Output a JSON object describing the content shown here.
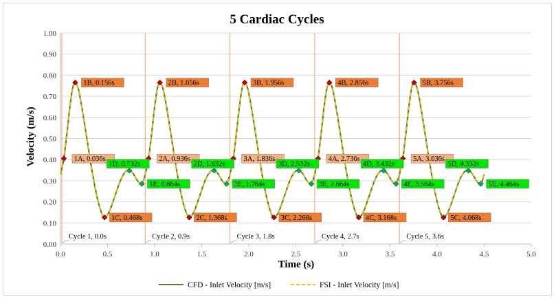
{
  "chart_data": {
    "type": "line",
    "title": "5 Cardiac Cycles",
    "xlabel": "Time (s)",
    "ylabel": "Velocity (m/s)",
    "xlim": [
      0,
      5.0
    ],
    "ylim": [
      0,
      1.0
    ],
    "x_ticks": [
      "0.0",
      "0.5",
      "1.0",
      "1.5",
      "2.0",
      "2.5",
      "3.0",
      "3.5",
      "4.0",
      "4.5",
      "5.0"
    ],
    "y_ticks": [
      "0.00",
      "0.10",
      "0.20",
      "0.30",
      "0.40",
      "0.50",
      "0.60",
      "0.70",
      "0.80",
      "0.90",
      "1.00"
    ],
    "grid": true,
    "legend_position": "bottom",
    "colors": {
      "cfd": "#548235",
      "fsi": "#ffc000",
      "cycle_line": "#f4b183",
      "label_orange_fill": "#f4b183",
      "label_orange_fill_alt": "#ed7d31",
      "label_green_fill": "#00e600",
      "marker_red": "#c00000",
      "marker_green": "#00b050",
      "grid": "#d9d9d9"
    },
    "series": [
      {
        "name": "CFD - Inlet Velocity [m/s]",
        "style": "solid"
      },
      {
        "name": "FSI - Inlet Velocity [m/s]",
        "style": "dashed"
      }
    ],
    "cycle_period": 0.9,
    "cycle_template": {
      "t": [
        0,
        0.02,
        0.036,
        0.07,
        0.1,
        0.13,
        0.156,
        0.19,
        0.23,
        0.28,
        0.33,
        0.38,
        0.43,
        0.468,
        0.52,
        0.58,
        0.64,
        0.69,
        0.732,
        0.77,
        0.81,
        0.84,
        0.864,
        0.88,
        0.9
      ],
      "v": [
        0.33,
        0.37,
        0.405,
        0.53,
        0.65,
        0.74,
        0.765,
        0.735,
        0.64,
        0.5,
        0.36,
        0.24,
        0.155,
        0.126,
        0.155,
        0.23,
        0.305,
        0.342,
        0.348,
        0.335,
        0.305,
        0.288,
        0.285,
        0.3,
        0.33
      ]
    },
    "annotations": [
      {
        "text": "1A, 0.036s",
        "x": 0.036,
        "y": 0.405,
        "kind": "A"
      },
      {
        "text": "1B, 0.156s",
        "x": 0.156,
        "y": 0.765,
        "kind": "B"
      },
      {
        "text": "1C, 0.468s",
        "x": 0.468,
        "y": 0.126,
        "kind": "C"
      },
      {
        "text": "1D, 0.732s",
        "x": 0.732,
        "y": 0.348,
        "kind": "D"
      },
      {
        "text": "1E, 0.864s",
        "x": 0.864,
        "y": 0.285,
        "kind": "E"
      },
      {
        "text": "2A, 0.936s",
        "x": 0.936,
        "y": 0.405,
        "kind": "A"
      },
      {
        "text": "2B, 1.056s",
        "x": 1.056,
        "y": 0.765,
        "kind": "B"
      },
      {
        "text": "2C, 1.368s",
        "x": 1.368,
        "y": 0.126,
        "kind": "C"
      },
      {
        "text": "2D, 1.632s",
        "x": 1.632,
        "y": 0.348,
        "kind": "D"
      },
      {
        "text": "2E, 1.764s",
        "x": 1.764,
        "y": 0.285,
        "kind": "E"
      },
      {
        "text": "3A, 1.836s",
        "x": 1.836,
        "y": 0.405,
        "kind": "A"
      },
      {
        "text": "3B, 1.956s",
        "x": 1.956,
        "y": 0.765,
        "kind": "B"
      },
      {
        "text": "3C, 2.268s",
        "x": 2.268,
        "y": 0.126,
        "kind": "C"
      },
      {
        "text": "3D, 2.532s",
        "x": 2.532,
        "y": 0.348,
        "kind": "D"
      },
      {
        "text": "3E, 2.664s",
        "x": 2.664,
        "y": 0.285,
        "kind": "E"
      },
      {
        "text": "4A, 2.736s",
        "x": 2.736,
        "y": 0.405,
        "kind": "A"
      },
      {
        "text": "4B, 2.856s",
        "x": 2.856,
        "y": 0.765,
        "kind": "B"
      },
      {
        "text": "4C, 3.168s",
        "x": 3.168,
        "y": 0.126,
        "kind": "C"
      },
      {
        "text": "4D, 3.432s",
        "x": 3.432,
        "y": 0.348,
        "kind": "D"
      },
      {
        "text": "4E, 3.564s",
        "x": 3.564,
        "y": 0.285,
        "kind": "E"
      },
      {
        "text": "5A, 3.636s",
        "x": 3.636,
        "y": 0.405,
        "kind": "A"
      },
      {
        "text": "5B, 3.756s",
        "x": 3.756,
        "y": 0.765,
        "kind": "B"
      },
      {
        "text": "5C, 4.068s",
        "x": 4.068,
        "y": 0.126,
        "kind": "C"
      },
      {
        "text": "5D, 4.332s",
        "x": 4.332,
        "y": 0.348,
        "kind": "D"
      },
      {
        "text": "5E, 4.464s",
        "x": 4.464,
        "y": 0.285,
        "kind": "E"
      }
    ],
    "cycle_markers": [
      {
        "text": "Cycle 1, 0.0s",
        "x": 0.0
      },
      {
        "text": "Cycle 2, 0.9s",
        "x": 0.9
      },
      {
        "text": "Cycle 3, 1.8s",
        "x": 1.8
      },
      {
        "text": "Cycle 4, 2.7s",
        "x": 2.7
      },
      {
        "text": "Cycle 5, 3.6s",
        "x": 3.6
      }
    ]
  }
}
